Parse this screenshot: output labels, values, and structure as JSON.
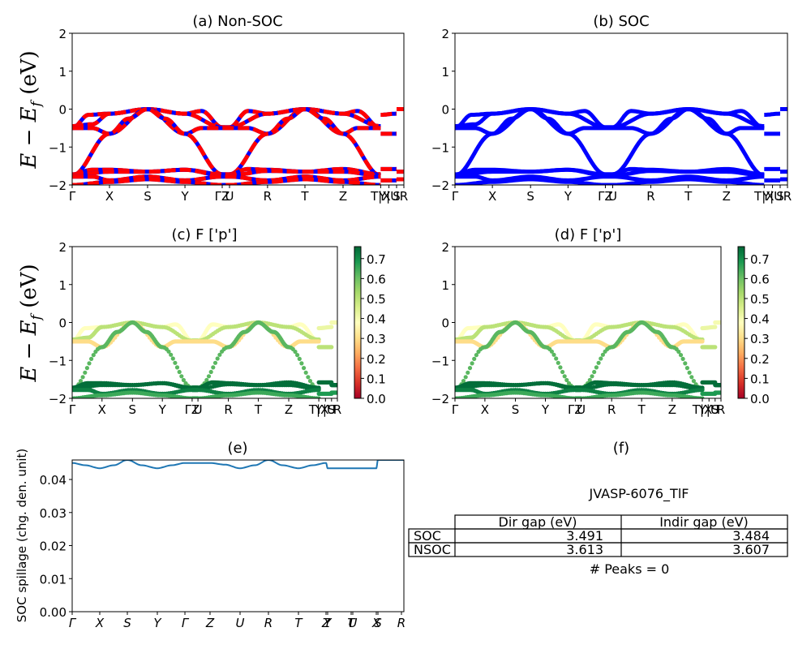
{
  "figure": {
    "material_label": "JVASP-6076_TlF",
    "peaks_label": "# Peaks = 0"
  },
  "colors": {
    "nonsoc_line": "#ff0000",
    "nonsoc_dash": "#0000ff",
    "soc_line": "#0000ff",
    "spillage_line": "#1f77b4",
    "colormap": "RdYlGn",
    "colormap_stops": [
      "#a50026",
      "#d73027",
      "#f46d43",
      "#fdae61",
      "#fee08b",
      "#ffffbf",
      "#d9ef8b",
      "#a6d96a",
      "#66bd63",
      "#1a9850",
      "#006837"
    ]
  },
  "chart_data": [
    {
      "id": "a",
      "type": "line",
      "title": "(a) Non-SOC",
      "ylabel": "E − E_f (eV)",
      "ylim": [
        -2,
        2
      ],
      "yticks": [
        "2",
        "1",
        "0",
        "−1",
        "−2"
      ],
      "ytick_values": [
        2,
        1,
        0,
        -1,
        -2
      ],
      "kpath_labels": [
        "Γ",
        "X",
        "S",
        "Y",
        "Γ",
        "Z",
        "U",
        "R",
        "T",
        "Z",
        "T",
        "X",
        "Y",
        "U",
        "S"
      ],
      "xtick_labels": [
        "Γ",
        "X",
        "S",
        "Y",
        "ΓZ",
        "U",
        "R",
        "T",
        "Z",
        "T|X",
        "Y|U",
        "S",
        "R"
      ],
      "xtick_positions": [
        0,
        0.1125,
        0.2273,
        0.34,
        0.4523,
        0.4743,
        0.589,
        0.7017,
        0.8166,
        0.93,
        0.955,
        0.978,
        1.0
      ],
      "series": [
        {
          "name": "valence-top-1",
          "points": [
            [
              0,
              -0.5
            ],
            [
              0.05,
              -0.15
            ],
            [
              0.1125,
              -0.12
            ],
            [
              0.2273,
              0.0
            ],
            [
              0.34,
              -0.12
            ],
            [
              0.39,
              -0.05
            ],
            [
              0.4523,
              -0.48
            ],
            [
              0.4743,
              -0.48
            ],
            [
              0.53,
              -0.05
            ],
            [
              0.589,
              -0.12
            ],
            [
              0.7017,
              0.0
            ],
            [
              0.8166,
              -0.12
            ],
            [
              0.86,
              -0.05
            ],
            [
              0.93,
              -0.5
            ]
          ]
        },
        {
          "name": "valence-top-2",
          "points": [
            [
              0,
              -0.45
            ],
            [
              0.06,
              -0.4
            ],
            [
              0.1125,
              -0.12
            ],
            [
              0.2273,
              0.0
            ],
            [
              0.34,
              -0.12
            ],
            [
              0.4523,
              -0.48
            ],
            [
              0.4743,
              -0.48
            ],
            [
              0.589,
              -0.12
            ],
            [
              0.7017,
              0.0
            ],
            [
              0.8166,
              -0.12
            ],
            [
              0.93,
              -0.45
            ]
          ]
        },
        {
          "name": "valence-mid",
          "points": [
            [
              0,
              -0.5
            ],
            [
              0.06,
              -0.5
            ],
            [
              0.1125,
              -0.65
            ],
            [
              0.2273,
              0.0
            ],
            [
              0.34,
              -0.65
            ],
            [
              0.39,
              -0.5
            ],
            [
              0.4523,
              -0.5
            ],
            [
              0.4743,
              -0.5
            ],
            [
              0.53,
              -0.5
            ],
            [
              0.589,
              -0.65
            ],
            [
              0.7017,
              0.0
            ],
            [
              0.8166,
              -0.65
            ],
            [
              0.86,
              -0.5
            ],
            [
              0.93,
              -0.5
            ]
          ]
        },
        {
          "name": "valence-disp",
          "points": [
            [
              0,
              -1.75
            ],
            [
              0.1125,
              -0.65
            ],
            [
              0.17,
              -0.25
            ],
            [
              0.2273,
              0.0
            ],
            [
              0.28,
              -0.25
            ],
            [
              0.34,
              -0.65
            ],
            [
              0.4523,
              -1.72
            ],
            [
              0.4743,
              -1.72
            ],
            [
              0.589,
              -0.65
            ],
            [
              0.65,
              -0.25
            ],
            [
              0.7017,
              0.0
            ],
            [
              0.76,
              -0.25
            ],
            [
              0.8166,
              -0.65
            ],
            [
              0.93,
              -1.75
            ]
          ]
        },
        {
          "name": "lower-1",
          "points": [
            [
              0,
              -1.72
            ],
            [
              0.06,
              -1.6
            ],
            [
              0.1125,
              -1.6
            ],
            [
              0.2273,
              -1.65
            ],
            [
              0.34,
              -1.6
            ],
            [
              0.4523,
              -1.72
            ],
            [
              0.4743,
              -1.72
            ],
            [
              0.53,
              -1.58
            ],
            [
              0.589,
              -1.6
            ],
            [
              0.7017,
              -1.65
            ],
            [
              0.8166,
              -1.58
            ],
            [
              0.93,
              -1.72
            ]
          ]
        },
        {
          "name": "lower-2",
          "points": [
            [
              0,
              -1.75
            ],
            [
              0.1125,
              -1.65
            ],
            [
              0.2273,
              -1.65
            ],
            [
              0.34,
              -1.6
            ],
            [
              0.4523,
              -1.75
            ],
            [
              0.4743,
              -1.75
            ],
            [
              0.589,
              -1.63
            ],
            [
              0.7017,
              -1.65
            ],
            [
              0.8166,
              -1.65
            ],
            [
              0.93,
              -1.75
            ]
          ]
        },
        {
          "name": "lower-3",
          "points": [
            [
              0,
              -1.78
            ],
            [
              0.06,
              -1.78
            ],
            [
              0.1125,
              -1.88
            ],
            [
              0.2273,
              -1.78
            ],
            [
              0.34,
              -1.88
            ],
            [
              0.4523,
              -1.78
            ],
            [
              0.4743,
              -1.78
            ],
            [
              0.589,
              -1.88
            ],
            [
              0.7017,
              -1.78
            ],
            [
              0.8166,
              -1.88
            ],
            [
              0.93,
              -1.78
            ]
          ]
        },
        {
          "name": "lower-4",
          "points": [
            [
              0,
              -2.0
            ],
            [
              0.1125,
              -1.92
            ],
            [
              0.2273,
              -1.85
            ],
            [
              0.34,
              -1.92
            ],
            [
              0.4523,
              -2.0
            ],
            [
              0.4743,
              -2.0
            ],
            [
              0.589,
              -1.92
            ],
            [
              0.7017,
              -1.85
            ],
            [
              0.8166,
              -1.92
            ],
            [
              0.93,
              -2.0
            ]
          ]
        },
        {
          "name": "seg-tx-1",
          "points": [
            [
              0.93,
              -0.15
            ],
            [
              0.978,
              -0.12
            ]
          ]
        },
        {
          "name": "seg-tx-2",
          "points": [
            [
              0.93,
              -0.65
            ],
            [
              0.978,
              -0.65
            ]
          ]
        },
        {
          "name": "seg-us-1",
          "points": [
            [
              0.978,
              0.0
            ],
            [
              1.0,
              0.0
            ]
          ]
        },
        {
          "name": "seg-tx-3",
          "points": [
            [
              0.93,
              -1.58
            ],
            [
              0.978,
              -1.58
            ]
          ]
        },
        {
          "name": "seg-tx-4",
          "points": [
            [
              0.93,
              -1.88
            ],
            [
              0.978,
              -1.88
            ]
          ]
        },
        {
          "name": "seg-us-2",
          "points": [
            [
              0.978,
              -1.65
            ],
            [
              1.0,
              -1.65
            ]
          ]
        },
        {
          "name": "seg-us-3",
          "points": [
            [
              0.978,
              -1.85
            ],
            [
              1.0,
              -1.85
            ]
          ]
        }
      ]
    },
    {
      "id": "b",
      "type": "line",
      "title": "(b) SOC",
      "ylim": [
        -2,
        2
      ],
      "yticks": [
        "2",
        "1",
        "0",
        "−1",
        "−2"
      ],
      "ytick_values": [
        2,
        1,
        0,
        -1,
        -2
      ],
      "xtick_labels": [
        "Γ",
        "X",
        "S",
        "Y",
        "ΓZ",
        "U",
        "R",
        "T",
        "Z",
        "T|X",
        "Y|U",
        "S",
        "R"
      ],
      "xtick_positions": [
        0,
        0.1125,
        0.2273,
        0.34,
        0.4523,
        0.4743,
        0.589,
        0.7017,
        0.8166,
        0.93,
        0.955,
        0.978,
        1.0
      ],
      "same_bands_as": "a"
    },
    {
      "id": "c",
      "type": "scatter",
      "title": "(c)  F ['p']",
      "ylabel": "E − E_f (eV)",
      "ylim": [
        -2,
        2
      ],
      "yticks": [
        "2",
        "1",
        "0",
        "−1",
        "−2"
      ],
      "ytick_values": [
        2,
        1,
        0,
        -1,
        -2
      ],
      "xtick_labels": [
        "Γ",
        "X",
        "S",
        "Y",
        "ΓZ",
        "U",
        "R",
        "T",
        "Z",
        "T|X",
        "Y|U",
        "S",
        "R"
      ],
      "xtick_positions": [
        0,
        0.1125,
        0.2273,
        0.34,
        0.4523,
        0.4743,
        0.589,
        0.7017,
        0.8166,
        0.93,
        0.955,
        0.978,
        1.0
      ],
      "colorbar": {
        "min": 0.0,
        "max": 0.76,
        "ticks": [
          "0.0",
          "0.1",
          "0.2",
          "0.3",
          "0.4",
          "0.5",
          "0.6",
          "0.7"
        ],
        "tick_values": [
          0,
          0.1,
          0.2,
          0.3,
          0.4,
          0.5,
          0.6,
          0.7
        ]
      },
      "band_weights": {
        "valence-top-1": 0.38,
        "valence-top-2": 0.5,
        "valence-mid": 0.3,
        "valence-disp": 0.62,
        "lower-1": 0.75,
        "lower-2": 0.75,
        "lower-3": 0.72,
        "lower-4": 0.65,
        "seg-tx-1": 0.42,
        "seg-tx-2": 0.5,
        "seg-us-1": 0.4,
        "seg-tx-3": 0.75,
        "seg-tx-4": 0.68,
        "seg-us-2": 0.75,
        "seg-us-3": 0.68
      }
    },
    {
      "id": "d",
      "type": "scatter",
      "title": "(d) F ['p']",
      "ylim": [
        -2,
        2
      ],
      "yticks": [
        "2",
        "1",
        "0",
        "−1",
        "−2"
      ],
      "ytick_values": [
        2,
        1,
        0,
        -1,
        -2
      ],
      "xtick_labels": [
        "Γ",
        "X",
        "S",
        "Y",
        "ΓZ",
        "U",
        "R",
        "T",
        "Z",
        "T|X",
        "Y|U",
        "S",
        "R"
      ],
      "xtick_positions": [
        0,
        0.1125,
        0.2273,
        0.34,
        0.4523,
        0.4743,
        0.589,
        0.7017,
        0.8166,
        0.93,
        0.955,
        0.978,
        1.0
      ],
      "colorbar": {
        "min": 0.0,
        "max": 0.76,
        "ticks": [
          "0.0",
          "0.1",
          "0.2",
          "0.3",
          "0.4",
          "0.5",
          "0.6",
          "0.7"
        ],
        "tick_values": [
          0,
          0.1,
          0.2,
          0.3,
          0.4,
          0.5,
          0.6,
          0.7
        ]
      },
      "same_bands_as": "a"
    },
    {
      "id": "e",
      "type": "line",
      "title": "(e)",
      "ylabel": "SOC spillage (chg. den. unit)",
      "ylim": [
        0.0,
        0.0459
      ],
      "yticks": [
        "0.00",
        "0.01",
        "0.02",
        "0.03",
        "0.04"
      ],
      "ytick_values": [
        0.0,
        0.01,
        0.02,
        0.03,
        0.04
      ],
      "xtick_labels": [
        "Γ",
        "X",
        "S",
        "Y",
        "Γ",
        "Z",
        "U",
        "R",
        "T",
        "Z",
        "Y",
        "T",
        "U",
        "X",
        "S",
        "R"
      ],
      "xtick_positions": [
        0,
        0.0831,
        0.1663,
        0.2567,
        0.3399,
        0.4156,
        0.5061,
        0.5917,
        0.6822,
        0.7653,
        0.7702,
        0.8411,
        0.846,
        0.9169,
        0.9218,
        0.9927
      ],
      "xlim": [
        0,
        1.0
      ],
      "x": [
        0,
        0.04,
        0.0831,
        0.125,
        0.1663,
        0.21,
        0.2567,
        0.3,
        0.3399,
        0.38,
        0.4156,
        0.46,
        0.5061,
        0.55,
        0.5917,
        0.635,
        0.6822,
        0.725,
        0.7653,
        0.7702,
        0.8411,
        0.846,
        0.9169,
        0.9218,
        1.0
      ],
      "values": [
        0.045,
        0.0443,
        0.0434,
        0.0443,
        0.0459,
        0.0443,
        0.0434,
        0.0443,
        0.045,
        0.045,
        0.045,
        0.0445,
        0.0434,
        0.0443,
        0.0459,
        0.0443,
        0.0434,
        0.0443,
        0.045,
        0.0434,
        0.0434,
        0.0434,
        0.0434,
        0.0459,
        0.0459
      ]
    },
    {
      "id": "f",
      "type": "table",
      "title": "(f)",
      "columns": [
        "",
        "Dir gap (eV)",
        "Indir gap (eV)"
      ],
      "rows": [
        {
          "label": "SOC",
          "dir_gap": "3.491",
          "indir_gap": "3.484"
        },
        {
          "label": "NSOC",
          "dir_gap": "3.613",
          "indir_gap": "3.607"
        }
      ]
    }
  ]
}
